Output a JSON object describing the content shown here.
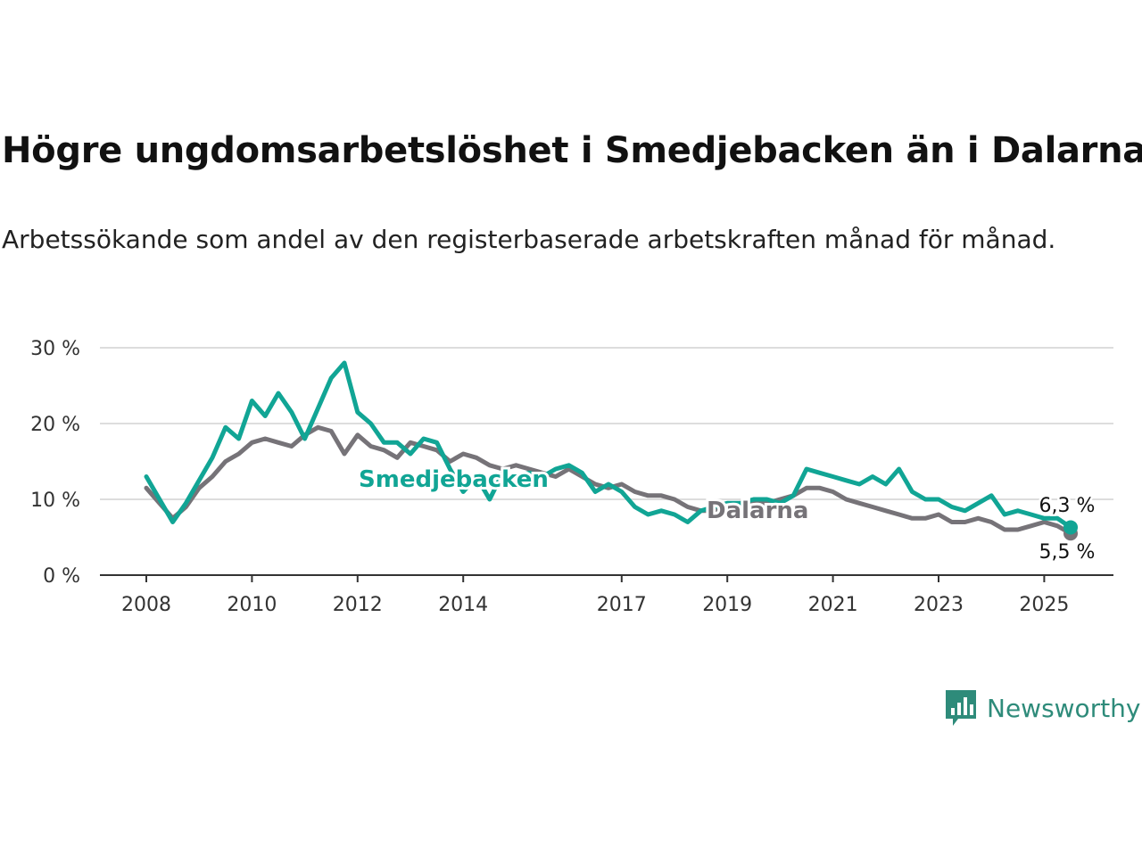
{
  "title": "Högre ungdomsarbetslöshet i Smedjebacken än i Dalarna",
  "subtitle": "Arbetssökande som andel av den registerbaserade arbetskraften månad för månad.",
  "brand": "Newsworthy",
  "colors": {
    "smedjebacken": "#11a595",
    "dalarna": "#767378",
    "grid": "#dddddd",
    "axis": "#333333"
  },
  "chart_data": {
    "type": "line",
    "x_start": "2008-01",
    "x_end": "2025-06",
    "x_ticks": [
      {
        "label": "2008",
        "x": 2008
      },
      {
        "label": "2010",
        "x": 2010
      },
      {
        "label": "2012",
        "x": 2012
      },
      {
        "label": "2014",
        "x": 2014
      },
      {
        "label": "2017",
        "x": 2017
      },
      {
        "label": "2019",
        "x": 2019
      },
      {
        "label": "2021",
        "x": 2021
      },
      {
        "label": "2023",
        "x": 2023
      },
      {
        "label": "2025",
        "x": 2025
      }
    ],
    "y_ticks": [
      {
        "label": "0 %",
        "v": 0
      },
      {
        "label": "10 %",
        "v": 10
      },
      {
        "label": "20 %",
        "v": 20
      },
      {
        "label": "30 %",
        "v": 30
      }
    ],
    "ylim": [
      0,
      30
    ],
    "grid": true,
    "series": [
      {
        "name": "Dalarna",
        "color": "#767378",
        "end_label": "5,5 %",
        "points": [
          [
            2008.0,
            11.5
          ],
          [
            2008.25,
            9.5
          ],
          [
            2008.5,
            7.5
          ],
          [
            2008.75,
            9.0
          ],
          [
            2009.0,
            11.5
          ],
          [
            2009.25,
            13.0
          ],
          [
            2009.5,
            15.0
          ],
          [
            2009.75,
            16.0
          ],
          [
            2010.0,
            17.5
          ],
          [
            2010.25,
            18.0
          ],
          [
            2010.5,
            17.5
          ],
          [
            2010.75,
            17.0
          ],
          [
            2011.0,
            18.5
          ],
          [
            2011.25,
            19.5
          ],
          [
            2011.5,
            19.0
          ],
          [
            2011.75,
            16.0
          ],
          [
            2012.0,
            18.5
          ],
          [
            2012.25,
            17.0
          ],
          [
            2012.5,
            16.5
          ],
          [
            2012.75,
            15.5
          ],
          [
            2013.0,
            17.5
          ],
          [
            2013.25,
            17.0
          ],
          [
            2013.5,
            16.5
          ],
          [
            2013.75,
            15.0
          ],
          [
            2014.0,
            16.0
          ],
          [
            2014.25,
            15.5
          ],
          [
            2014.5,
            14.5
          ],
          [
            2014.75,
            14.0
          ],
          [
            2015.0,
            14.5
          ],
          [
            2015.25,
            14.0
          ],
          [
            2015.5,
            13.5
          ],
          [
            2015.75,
            13.0
          ],
          [
            2016.0,
            14.0
          ],
          [
            2016.25,
            13.0
          ],
          [
            2016.5,
            12.0
          ],
          [
            2016.75,
            11.5
          ],
          [
            2017.0,
            12.0
          ],
          [
            2017.25,
            11.0
          ],
          [
            2017.5,
            10.5
          ],
          [
            2017.75,
            10.5
          ],
          [
            2018.0,
            10.0
          ],
          [
            2018.25,
            9.0
          ],
          [
            2018.5,
            8.5
          ],
          [
            2018.75,
            8.5
          ],
          [
            2019.0,
            9.0
          ],
          [
            2019.25,
            9.5
          ],
          [
            2019.5,
            9.5
          ],
          [
            2019.75,
            9.5
          ],
          [
            2020.0,
            10.0
          ],
          [
            2020.25,
            10.5
          ],
          [
            2020.5,
            11.5
          ],
          [
            2020.75,
            11.5
          ],
          [
            2021.0,
            11.0
          ],
          [
            2021.25,
            10.0
          ],
          [
            2021.5,
            9.5
          ],
          [
            2021.75,
            9.0
          ],
          [
            2022.0,
            8.5
          ],
          [
            2022.25,
            8.0
          ],
          [
            2022.5,
            7.5
          ],
          [
            2022.75,
            7.5
          ],
          [
            2023.0,
            8.0
          ],
          [
            2023.25,
            7.0
          ],
          [
            2023.5,
            7.0
          ],
          [
            2023.75,
            7.5
          ],
          [
            2024.0,
            7.0
          ],
          [
            2024.25,
            6.0
          ],
          [
            2024.5,
            6.0
          ],
          [
            2024.75,
            6.5
          ],
          [
            2025.0,
            7.0
          ],
          [
            2025.25,
            6.5
          ],
          [
            2025.5,
            5.5
          ]
        ]
      },
      {
        "name": "Smedjebacken",
        "color": "#11a595",
        "end_label": "6,3 %",
        "points": [
          [
            2008.0,
            13.0
          ],
          [
            2008.25,
            10.0
          ],
          [
            2008.5,
            7.0
          ],
          [
            2008.75,
            9.5
          ],
          [
            2009.0,
            12.5
          ],
          [
            2009.25,
            15.5
          ],
          [
            2009.5,
            19.5
          ],
          [
            2009.75,
            18.0
          ],
          [
            2010.0,
            23.0
          ],
          [
            2010.25,
            21.0
          ],
          [
            2010.5,
            24.0
          ],
          [
            2010.75,
            21.5
          ],
          [
            2011.0,
            18.0
          ],
          [
            2011.25,
            22.0
          ],
          [
            2011.5,
            26.0
          ],
          [
            2011.75,
            28.0
          ],
          [
            2012.0,
            21.5
          ],
          [
            2012.25,
            20.0
          ],
          [
            2012.5,
            17.5
          ],
          [
            2012.75,
            17.5
          ],
          [
            2013.0,
            16.0
          ],
          [
            2013.25,
            18.0
          ],
          [
            2013.5,
            17.5
          ],
          [
            2013.75,
            14.0
          ],
          [
            2014.0,
            11.0
          ],
          [
            2014.25,
            13.0
          ],
          [
            2014.5,
            10.0
          ],
          [
            2014.75,
            13.5
          ],
          [
            2015.0,
            13.0
          ],
          [
            2015.25,
            13.5
          ],
          [
            2015.5,
            13.0
          ],
          [
            2015.75,
            14.0
          ],
          [
            2016.0,
            14.5
          ],
          [
            2016.25,
            13.5
          ],
          [
            2016.5,
            11.0
          ],
          [
            2016.75,
            12.0
          ],
          [
            2017.0,
            11.0
          ],
          [
            2017.25,
            9.0
          ],
          [
            2017.5,
            8.0
          ],
          [
            2017.75,
            8.5
          ],
          [
            2018.0,
            8.0
          ],
          [
            2018.25,
            7.0
          ],
          [
            2018.5,
            8.5
          ],
          [
            2018.75,
            9.0
          ],
          [
            2019.0,
            9.5
          ],
          [
            2019.25,
            9.5
          ],
          [
            2019.5,
            10.0
          ],
          [
            2019.75,
            10.0
          ],
          [
            2020.0,
            9.5
          ],
          [
            2020.25,
            10.5
          ],
          [
            2020.5,
            14.0
          ],
          [
            2020.75,
            13.5
          ],
          [
            2021.0,
            13.0
          ],
          [
            2021.25,
            12.5
          ],
          [
            2021.5,
            12.0
          ],
          [
            2021.75,
            13.0
          ],
          [
            2022.0,
            12.0
          ],
          [
            2022.25,
            14.0
          ],
          [
            2022.5,
            11.0
          ],
          [
            2022.75,
            10.0
          ],
          [
            2023.0,
            10.0
          ],
          [
            2023.25,
            9.0
          ],
          [
            2023.5,
            8.5
          ],
          [
            2023.75,
            9.5
          ],
          [
            2024.0,
            10.5
          ],
          [
            2024.25,
            8.0
          ],
          [
            2024.5,
            8.5
          ],
          [
            2024.75,
            8.0
          ],
          [
            2025.0,
            7.5
          ],
          [
            2025.25,
            7.5
          ],
          [
            2025.5,
            6.3
          ]
        ]
      }
    ]
  }
}
